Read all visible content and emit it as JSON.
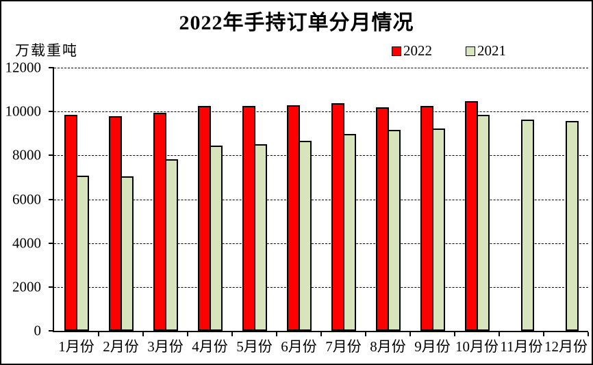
{
  "title": "2022年手持订单分月情况",
  "unit_label": "万载重吨",
  "legend": {
    "items": [
      {
        "label": "2022",
        "color": "#ff0000"
      },
      {
        "label": "2021",
        "color": "#d8e4bc"
      }
    ]
  },
  "colors": {
    "bar_2022": "#ff0000",
    "bar_2021": "#d8e4bc",
    "bar_border": "#000000",
    "axis": "#000000",
    "background": "#ffffff"
  },
  "chart_data": {
    "type": "bar",
    "title": "2022年手持订单分月情况",
    "ylabel": "万载重吨",
    "xlabel": "",
    "categories": [
      "1月份",
      "2月份",
      "3月份",
      "4月份",
      "5月份",
      "6月份",
      "7月份",
      "8月份",
      "9月份",
      "10月份",
      "11月份",
      "12月份"
    ],
    "series": [
      {
        "name": "2022",
        "color": "#ff0000",
        "values": [
          9840,
          9800,
          9940,
          10250,
          10240,
          10290,
          10370,
          10190,
          10250,
          10470,
          null,
          null
        ]
      },
      {
        "name": "2021",
        "color": "#d8e4bc",
        "values": [
          7080,
          7040,
          7830,
          8440,
          8500,
          8660,
          8970,
          9150,
          9240,
          9840,
          9640,
          9580
        ]
      }
    ],
    "ylim": [
      0,
      12000
    ],
    "ytick_interval": 2000,
    "yticks": [
      12000,
      10000,
      8000,
      6000,
      4000,
      2000,
      0
    ],
    "grid": "horizontal-dashed",
    "legend_position": "top-right"
  }
}
